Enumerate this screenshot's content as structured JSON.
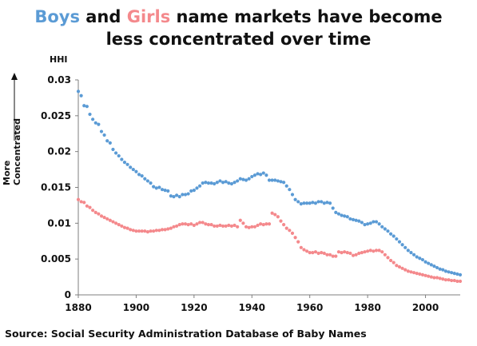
{
  "title": {
    "boys_word": "Boys",
    "and_word": " and ",
    "girls_word": "Girls",
    "rest_line1": " name markets have become",
    "line2": "less concentrated over time"
  },
  "source": "Source: Social Security Administration Database of Baby Names",
  "colors": {
    "boys": "#5b9bd5",
    "girls": "#f4898c",
    "axis": "#7f7f7f",
    "text": "#111111"
  },
  "chart_data": {
    "type": "scatter",
    "ylabel": "HHI",
    "annotation": "More Concentrated",
    "xlim": [
      1880,
      2012
    ],
    "ylim": [
      0,
      0.03
    ],
    "x_ticks": [
      1880,
      1900,
      1920,
      1940,
      1960,
      1980,
      2000
    ],
    "y_ticks": [
      0,
      0.005,
      0.01,
      0.015,
      0.02,
      0.025,
      0.03
    ],
    "y_tick_labels": [
      "0",
      "0.005",
      "0.01",
      "0.015",
      "0.02",
      "0.025",
      "0.03"
    ],
    "legend": "none",
    "grid": false,
    "series": [
      {
        "name": "Boys",
        "x": [
          1880,
          1881,
          1882,
          1883,
          1884,
          1885,
          1886,
          1887,
          1888,
          1889,
          1890,
          1891,
          1892,
          1893,
          1894,
          1895,
          1896,
          1897,
          1898,
          1899,
          1900,
          1901,
          1902,
          1903,
          1904,
          1905,
          1906,
          1907,
          1908,
          1909,
          1910,
          1911,
          1912,
          1913,
          1914,
          1915,
          1916,
          1917,
          1918,
          1919,
          1920,
          1921,
          1922,
          1923,
          1924,
          1925,
          1926,
          1927,
          1928,
          1929,
          1930,
          1931,
          1932,
          1933,
          1934,
          1935,
          1936,
          1937,
          1938,
          1939,
          1940,
          1941,
          1942,
          1943,
          1944,
          1945,
          1946,
          1947,
          1948,
          1949,
          1950,
          1951,
          1952,
          1953,
          1954,
          1955,
          1956,
          1957,
          1958,
          1959,
          1960,
          1961,
          1962,
          1963,
          1964,
          1965,
          1966,
          1967,
          1968,
          1969,
          1970,
          1971,
          1972,
          1973,
          1974,
          1975,
          1976,
          1977,
          1978,
          1979,
          1980,
          1981,
          1982,
          1983,
          1984,
          1985,
          1986,
          1987,
          1988,
          1989,
          1990,
          1991,
          1992,
          1993,
          1994,
          1995,
          1996,
          1997,
          1998,
          1999,
          2000,
          2001,
          2002,
          2003,
          2004,
          2005,
          2006,
          2007,
          2008,
          2009,
          2010,
          2011,
          2012
        ],
        "values": [
          0.0284,
          0.0278,
          0.0264,
          0.0263,
          0.0252,
          0.0245,
          0.024,
          0.0238,
          0.0228,
          0.0223,
          0.0215,
          0.0212,
          0.0203,
          0.0198,
          0.0194,
          0.0189,
          0.0185,
          0.0182,
          0.0178,
          0.0175,
          0.0172,
          0.0168,
          0.0166,
          0.0162,
          0.0159,
          0.0156,
          0.0151,
          0.0149,
          0.015,
          0.0147,
          0.0146,
          0.0145,
          0.0138,
          0.0137,
          0.0139,
          0.0137,
          0.014,
          0.014,
          0.0141,
          0.0145,
          0.0146,
          0.0149,
          0.0152,
          0.0156,
          0.0157,
          0.0156,
          0.0156,
          0.0155,
          0.0157,
          0.0159,
          0.0157,
          0.0158,
          0.0156,
          0.0155,
          0.0157,
          0.0159,
          0.0162,
          0.0161,
          0.016,
          0.0162,
          0.0165,
          0.0167,
          0.0169,
          0.0168,
          0.017,
          0.0167,
          0.016,
          0.016,
          0.016,
          0.0159,
          0.0158,
          0.0157,
          0.0152,
          0.0147,
          0.014,
          0.0133,
          0.013,
          0.0127,
          0.0128,
          0.0128,
          0.0128,
          0.0129,
          0.0128,
          0.013,
          0.013,
          0.0128,
          0.0129,
          0.0128,
          0.0121,
          0.0115,
          0.0113,
          0.0111,
          0.011,
          0.0109,
          0.0106,
          0.0105,
          0.0104,
          0.0103,
          0.0101,
          0.0098,
          0.0099,
          0.01,
          0.0102,
          0.0102,
          0.0099,
          0.0095,
          0.0092,
          0.0089,
          0.0085,
          0.0082,
          0.0078,
          0.0074,
          0.007,
          0.0066,
          0.0062,
          0.0059,
          0.0056,
          0.0053,
          0.0051,
          0.0049,
          0.0046,
          0.0044,
          0.0042,
          0.004,
          0.0038,
          0.0036,
          0.0035,
          0.0033,
          0.0032,
          0.0031,
          0.003,
          0.0029,
          0.0028
        ]
      },
      {
        "name": "Girls",
        "x": [
          1880,
          1881,
          1882,
          1883,
          1884,
          1885,
          1886,
          1887,
          1888,
          1889,
          1890,
          1891,
          1892,
          1893,
          1894,
          1895,
          1896,
          1897,
          1898,
          1899,
          1900,
          1901,
          1902,
          1903,
          1904,
          1905,
          1906,
          1907,
          1908,
          1909,
          1910,
          1911,
          1912,
          1913,
          1914,
          1915,
          1916,
          1917,
          1918,
          1919,
          1920,
          1921,
          1922,
          1923,
          1924,
          1925,
          1926,
          1927,
          1928,
          1929,
          1930,
          1931,
          1932,
          1933,
          1934,
          1935,
          1936,
          1937,
          1938,
          1939,
          1940,
          1941,
          1942,
          1943,
          1944,
          1945,
          1946,
          1947,
          1948,
          1949,
          1950,
          1951,
          1952,
          1953,
          1954,
          1955,
          1956,
          1957,
          1958,
          1959,
          1960,
          1961,
          1962,
          1963,
          1964,
          1965,
          1966,
          1967,
          1968,
          1969,
          1970,
          1971,
          1972,
          1973,
          1974,
          1975,
          1976,
          1977,
          1978,
          1979,
          1980,
          1981,
          1982,
          1983,
          1984,
          1985,
          1986,
          1987,
          1988,
          1989,
          1990,
          1991,
          1992,
          1993,
          1994,
          1995,
          1996,
          1997,
          1998,
          1999,
          2000,
          2001,
          2002,
          2003,
          2004,
          2005,
          2006,
          2007,
          2008,
          2009,
          2010,
          2011,
          2012
        ],
        "values": [
          0.0133,
          0.013,
          0.0129,
          0.0124,
          0.0122,
          0.0118,
          0.0115,
          0.0113,
          0.011,
          0.0108,
          0.0106,
          0.0104,
          0.0102,
          0.01,
          0.0098,
          0.0096,
          0.0094,
          0.0093,
          0.0091,
          0.009,
          0.0089,
          0.0089,
          0.0089,
          0.0089,
          0.0088,
          0.0089,
          0.0089,
          0.009,
          0.009,
          0.0091,
          0.0091,
          0.0092,
          0.0093,
          0.0095,
          0.0096,
          0.0098,
          0.0099,
          0.0099,
          0.0098,
          0.0099,
          0.0097,
          0.0099,
          0.0101,
          0.0101,
          0.0099,
          0.0098,
          0.0098,
          0.0096,
          0.0096,
          0.0097,
          0.0096,
          0.0096,
          0.0097,
          0.0096,
          0.0097,
          0.0095,
          0.0104,
          0.01,
          0.0095,
          0.0094,
          0.0095,
          0.0095,
          0.0097,
          0.0099,
          0.0098,
          0.0099,
          0.0099,
          0.0114,
          0.0112,
          0.0109,
          0.0103,
          0.0098,
          0.0093,
          0.009,
          0.0086,
          0.008,
          0.0074,
          0.0066,
          0.0063,
          0.0061,
          0.0059,
          0.0059,
          0.006,
          0.0058,
          0.0059,
          0.0058,
          0.0056,
          0.0056,
          0.0054,
          0.0054,
          0.006,
          0.0059,
          0.006,
          0.0059,
          0.0058,
          0.0055,
          0.0056,
          0.0058,
          0.0059,
          0.006,
          0.0061,
          0.0062,
          0.0061,
          0.0062,
          0.0062,
          0.006,
          0.0056,
          0.0052,
          0.0048,
          0.0045,
          0.0041,
          0.0039,
          0.0037,
          0.0035,
          0.0033,
          0.0032,
          0.0031,
          0.003,
          0.0029,
          0.0028,
          0.0027,
          0.0026,
          0.0025,
          0.0024,
          0.0024,
          0.0023,
          0.0022,
          0.0021,
          0.0021,
          0.002,
          0.002,
          0.0019,
          0.0019
        ]
      }
    ]
  }
}
